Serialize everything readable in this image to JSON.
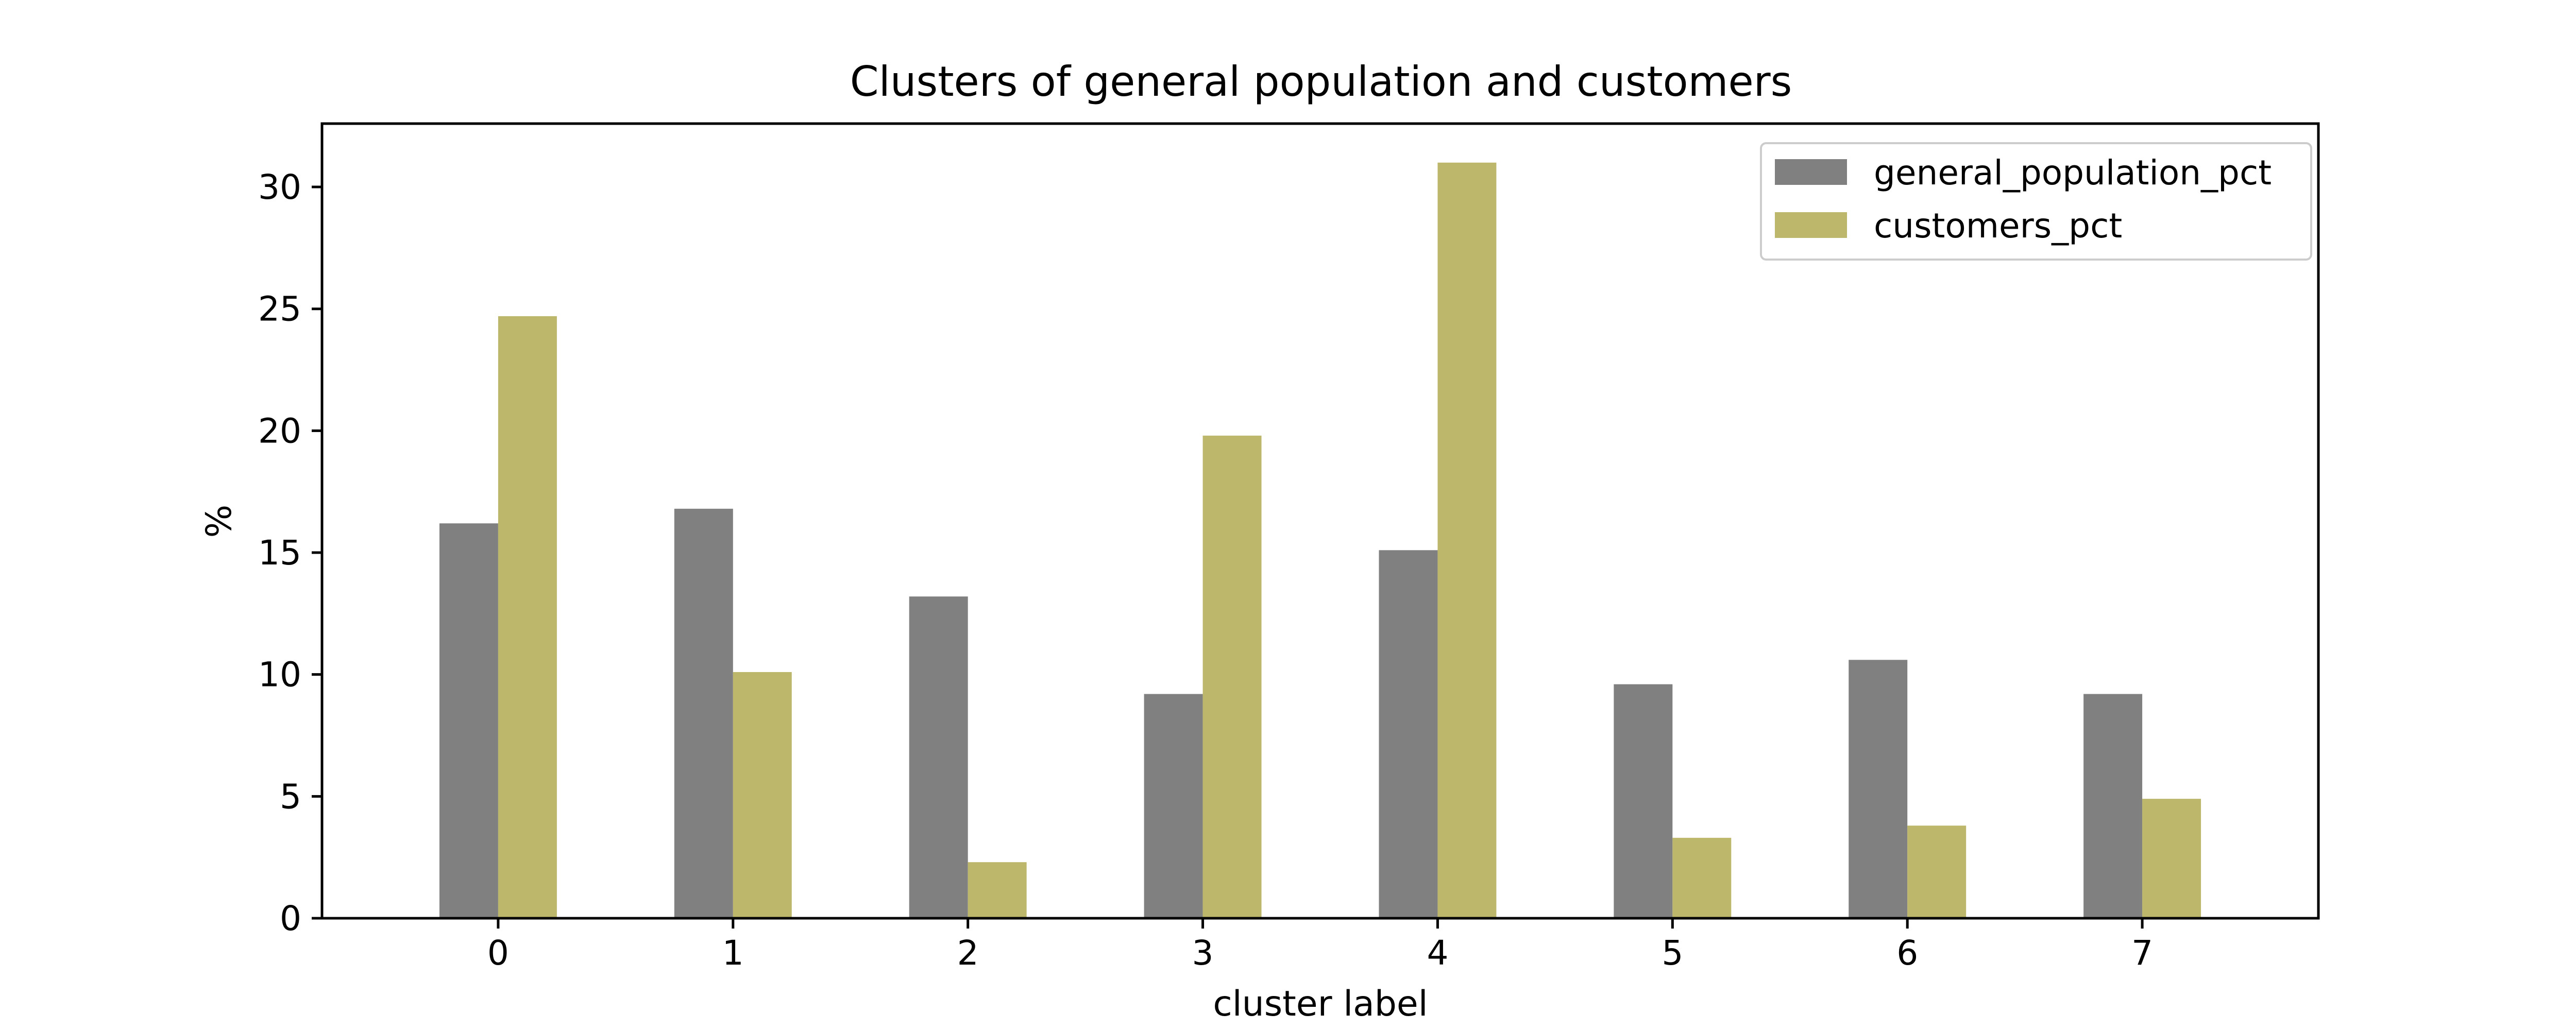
{
  "chart_data": {
    "type": "bar",
    "title": "Clusters of general population and customers",
    "xlabel": "cluster label",
    "ylabel": "%",
    "categories": [
      "0",
      "1",
      "2",
      "3",
      "4",
      "5",
      "6",
      "7"
    ],
    "series": [
      {
        "name": "general_population_pct",
        "color": "#808080",
        "values": [
          16.2,
          16.8,
          13.2,
          9.2,
          15.1,
          9.6,
          10.6,
          9.2
        ]
      },
      {
        "name": "customers_pct",
        "color": "#bdb76b",
        "values": [
          24.7,
          10.1,
          2.3,
          19.8,
          31.0,
          3.3,
          3.8,
          4.9
        ]
      }
    ],
    "ylim": [
      0,
      32.6
    ],
    "yticks": [
      0,
      5,
      10,
      15,
      20,
      25,
      30
    ],
    "grid": false,
    "legend_position": "top-right"
  }
}
